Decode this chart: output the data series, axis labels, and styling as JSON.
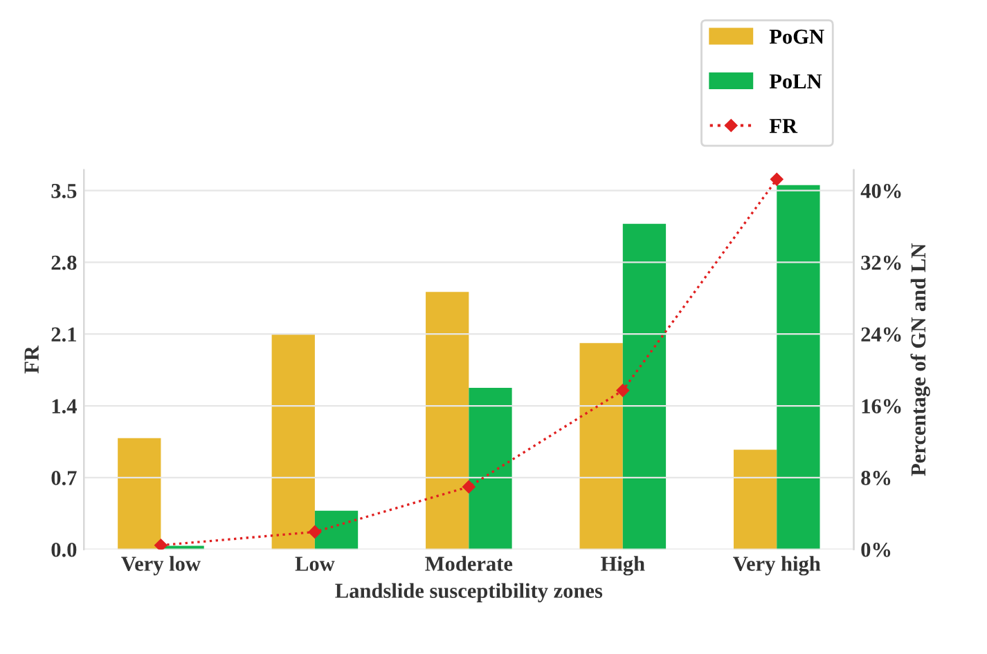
{
  "chart_data": {
    "type": "bar",
    "xlabel": "Landslide susceptibility zones",
    "ylabel": "FR",
    "y2label": "Percentage of GN and LN",
    "categories": [
      "Very low",
      "Low",
      "Moderate",
      "High",
      "Very high"
    ],
    "series": [
      {
        "name": "PoGN",
        "axis": "y2",
        "color": "#e8b830",
        "values": [
          12.4,
          24.0,
          28.7,
          23.0,
          11.1
        ]
      },
      {
        "name": "PoLN",
        "axis": "y2",
        "color": "#12b550",
        "values": [
          0.4,
          4.3,
          18.0,
          36.3,
          40.6
        ]
      },
      {
        "name": "FR",
        "type": "line",
        "axis": "y",
        "color": "#e02020",
        "marker": "diamond",
        "line_style": "dotted",
        "values": [
          0.04,
          0.17,
          0.61,
          1.55,
          3.61
        ]
      }
    ],
    "ylim": [
      0,
      3.7
    ],
    "yticks": [
      {
        "value": 0,
        "label": "0.0"
      },
      0.7,
      1.4,
      2.1,
      2.8,
      3.5
    ],
    "y2lim": [
      0,
      42.286
    ],
    "y2ticks": [
      {
        "value": 0,
        "label": "0%"
      },
      {
        "value": 8,
        "label": "8%"
      },
      {
        "value": 16,
        "label": "16%"
      },
      {
        "value": 24,
        "label": "24%"
      },
      {
        "value": 32,
        "label": "32%"
      },
      {
        "value": 40,
        "label": "40%"
      }
    ],
    "grid": "y",
    "legend": "top right"
  }
}
